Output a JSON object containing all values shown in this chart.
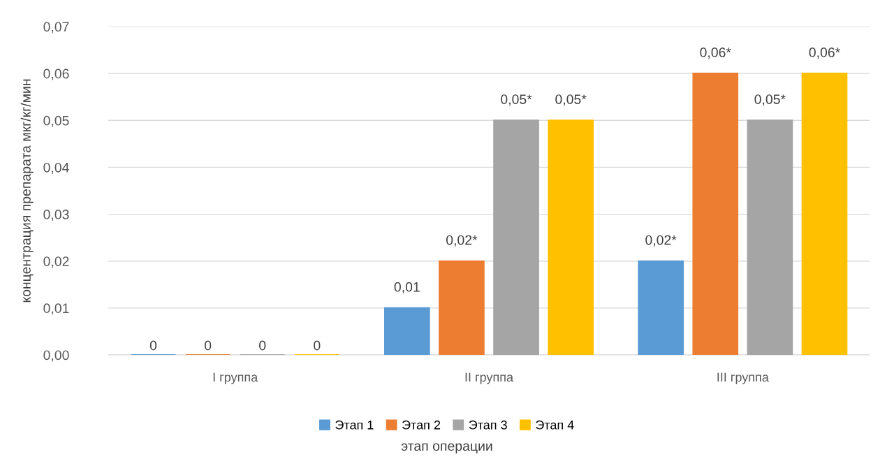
{
  "chart_data": {
    "type": "bar",
    "categories": [
      "I группа",
      "II группа",
      "III группа"
    ],
    "series": [
      {
        "name": "Этап 1",
        "color": "#5b9bd5",
        "values": [
          0,
          0.01,
          0.02
        ],
        "value_labels": [
          "0",
          "0,01",
          "0,02*"
        ]
      },
      {
        "name": "Этап 2",
        "color": "#ed7d31",
        "values": [
          0,
          0.02,
          0.06
        ],
        "value_labels": [
          "0",
          "0,02*",
          "0,06*"
        ]
      },
      {
        "name": "Этап 3",
        "color": "#a5a5a5",
        "values": [
          0,
          0.05,
          0.05
        ],
        "value_labels": [
          "0",
          "0,05*",
          "0,05*"
        ]
      },
      {
        "name": "Этап 4",
        "color": "#ffc000",
        "values": [
          0,
          0.05,
          0.06
        ],
        "value_labels": [
          "0",
          "0,05*",
          "0,06*"
        ]
      }
    ],
    "ylabel": "концентрация препарата мкг/кг/мин",
    "xlabel": "этап операции",
    "ylim": [
      0,
      0.07
    ],
    "yticks": [
      {
        "value": 0,
        "label": "0,00"
      },
      {
        "value": 0.01,
        "label": "0,01"
      },
      {
        "value": 0.02,
        "label": "0,02"
      },
      {
        "value": 0.03,
        "label": "0,03"
      },
      {
        "value": 0.04,
        "label": "0,04"
      },
      {
        "value": 0.05,
        "label": "0,05"
      },
      {
        "value": 0.06,
        "label": "0,06"
      },
      {
        "value": 0.07,
        "label": "0,07"
      }
    ],
    "grid": "y",
    "legend": "bottom"
  }
}
